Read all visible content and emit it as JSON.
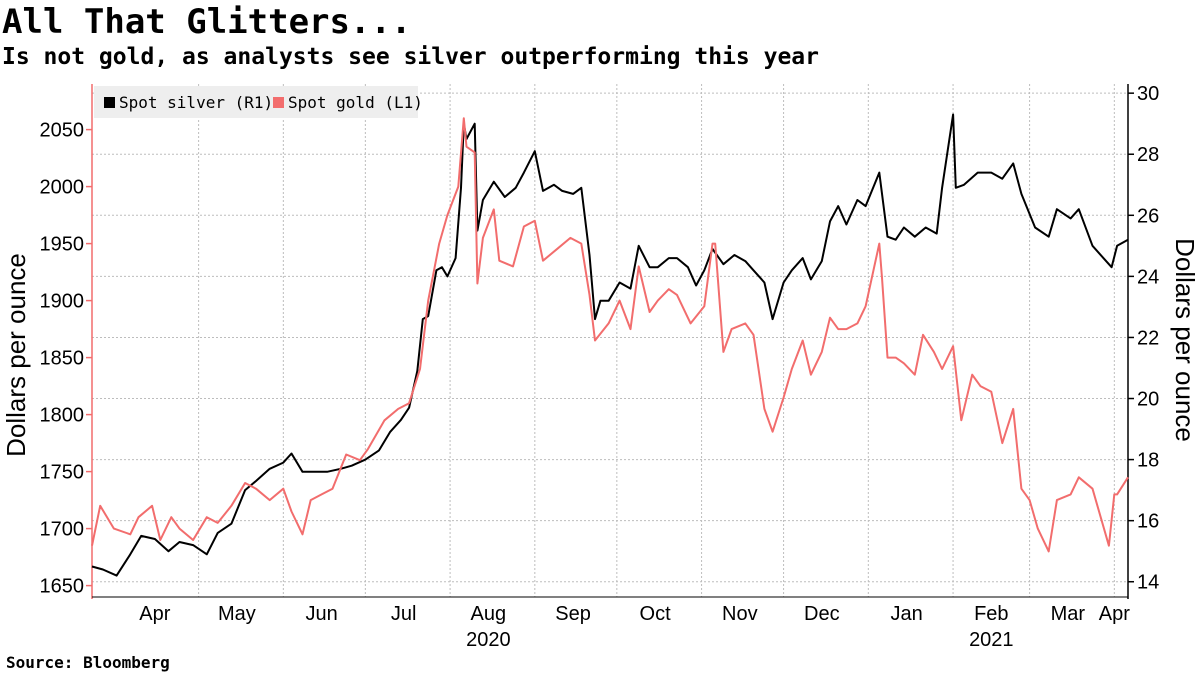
{
  "header": {
    "title": "All That Glitters...",
    "subtitle": "Is not gold, as analysts see silver outperforming this year"
  },
  "footer": {
    "source": "Source: Bloomberg"
  },
  "colors": {
    "silver": "#000000",
    "gold": "#f26d6d",
    "grid": "#bdbdbd",
    "legend_bg": "#eeeeee"
  },
  "chart_data": {
    "type": "line",
    "x_axis": {
      "type": "date",
      "range": [
        "2020-03-23",
        "2021-04-06"
      ],
      "ticks": [
        {
          "label": "Apr",
          "date": "2020-04-15"
        },
        {
          "label": "May",
          "date": "2020-05-15"
        },
        {
          "label": "Jun",
          "date": "2020-06-15"
        },
        {
          "label": "Jul",
          "date": "2020-07-15"
        },
        {
          "label": "Aug",
          "date": "2020-08-15"
        },
        {
          "label": "Sep",
          "date": "2020-09-15"
        },
        {
          "label": "Oct",
          "date": "2020-10-15"
        },
        {
          "label": "Nov",
          "date": "2020-11-15"
        },
        {
          "label": "Dec",
          "date": "2020-12-15"
        },
        {
          "label": "Jan",
          "date": "2021-01-15"
        },
        {
          "label": "Feb",
          "date": "2021-02-15"
        },
        {
          "label": "Mar",
          "date": "2021-03-15"
        },
        {
          "label": "Apr",
          "date": "2021-04-01"
        }
      ],
      "year_labels": [
        {
          "label": "2020",
          "date": "2020-08-15"
        },
        {
          "label": "2021",
          "date": "2021-02-15"
        }
      ]
    },
    "y_left": {
      "label": "Dollars per ounce",
      "range": [
        1640,
        2090
      ],
      "ticks": [
        1650,
        1700,
        1750,
        1800,
        1850,
        1900,
        1950,
        2000,
        2050
      ]
    },
    "y_right": {
      "label": "Dollars per ounce",
      "range": [
        13.5,
        30.3
      ],
      "ticks": [
        14,
        16,
        18,
        20,
        22,
        24,
        26,
        28,
        30
      ]
    },
    "legend": {
      "placement": "top-left",
      "entries": [
        {
          "label": "Spot silver (R1)",
          "color": "#000000"
        },
        {
          "label": "Spot gold (L1)",
          "color": "#f26d6d"
        }
      ]
    },
    "grid": true,
    "series": [
      {
        "name": "Spot silver (R1)",
        "axis": "right",
        "color": "#000000",
        "points": [
          [
            "2020-03-23",
            14.5
          ],
          [
            "2020-03-27",
            14.4
          ],
          [
            "2020-04-01",
            14.2
          ],
          [
            "2020-04-06",
            14.9
          ],
          [
            "2020-04-10",
            15.5
          ],
          [
            "2020-04-15",
            15.4
          ],
          [
            "2020-04-20",
            15.0
          ],
          [
            "2020-04-24",
            15.3
          ],
          [
            "2020-04-29",
            15.2
          ],
          [
            "2020-05-04",
            14.9
          ],
          [
            "2020-05-08",
            15.6
          ],
          [
            "2020-05-13",
            15.9
          ],
          [
            "2020-05-18",
            17.0
          ],
          [
            "2020-05-22",
            17.3
          ],
          [
            "2020-05-27",
            17.7
          ],
          [
            "2020-06-01",
            17.9
          ],
          [
            "2020-06-04",
            18.2
          ],
          [
            "2020-06-08",
            17.6
          ],
          [
            "2020-06-12",
            17.6
          ],
          [
            "2020-06-17",
            17.6
          ],
          [
            "2020-06-22",
            17.7
          ],
          [
            "2020-06-26",
            17.8
          ],
          [
            "2020-07-01",
            18.0
          ],
          [
            "2020-07-06",
            18.3
          ],
          [
            "2020-07-10",
            18.9
          ],
          [
            "2020-07-14",
            19.3
          ],
          [
            "2020-07-17",
            19.7
          ],
          [
            "2020-07-20",
            20.9
          ],
          [
            "2020-07-22",
            22.6
          ],
          [
            "2020-07-24",
            22.7
          ],
          [
            "2020-07-27",
            24.2
          ],
          [
            "2020-07-29",
            24.3
          ],
          [
            "2020-07-31",
            24.0
          ],
          [
            "2020-08-03",
            24.6
          ],
          [
            "2020-08-05",
            26.9
          ],
          [
            "2020-08-06",
            29.0
          ],
          [
            "2020-08-07",
            28.5
          ],
          [
            "2020-08-10",
            29.0
          ],
          [
            "2020-08-11",
            25.5
          ],
          [
            "2020-08-13",
            26.5
          ],
          [
            "2020-08-17",
            27.1
          ],
          [
            "2020-08-21",
            26.6
          ],
          [
            "2020-08-25",
            26.9
          ],
          [
            "2020-08-28",
            27.4
          ],
          [
            "2020-09-01",
            28.1
          ],
          [
            "2020-09-04",
            26.8
          ],
          [
            "2020-09-08",
            27.0
          ],
          [
            "2020-09-11",
            26.8
          ],
          [
            "2020-09-15",
            26.7
          ],
          [
            "2020-09-18",
            26.9
          ],
          [
            "2020-09-21",
            24.7
          ],
          [
            "2020-09-23",
            22.6
          ],
          [
            "2020-09-25",
            23.2
          ],
          [
            "2020-09-28",
            23.2
          ],
          [
            "2020-10-02",
            23.8
          ],
          [
            "2020-10-06",
            23.6
          ],
          [
            "2020-10-09",
            25.0
          ],
          [
            "2020-10-13",
            24.3
          ],
          [
            "2020-10-16",
            24.3
          ],
          [
            "2020-10-20",
            24.6
          ],
          [
            "2020-10-23",
            24.6
          ],
          [
            "2020-10-27",
            24.3
          ],
          [
            "2020-10-30",
            23.7
          ],
          [
            "2020-11-02",
            24.2
          ],
          [
            "2020-11-05",
            24.9
          ],
          [
            "2020-11-09",
            24.4
          ],
          [
            "2020-11-13",
            24.7
          ],
          [
            "2020-11-17",
            24.5
          ],
          [
            "2020-11-20",
            24.2
          ],
          [
            "2020-11-24",
            23.8
          ],
          [
            "2020-11-27",
            22.6
          ],
          [
            "2020-12-01",
            23.8
          ],
          [
            "2020-12-04",
            24.2
          ],
          [
            "2020-12-08",
            24.6
          ],
          [
            "2020-12-11",
            23.9
          ],
          [
            "2020-12-15",
            24.5
          ],
          [
            "2020-12-18",
            25.8
          ],
          [
            "2020-12-21",
            26.3
          ],
          [
            "2020-12-24",
            25.7
          ],
          [
            "2020-12-28",
            26.5
          ],
          [
            "2020-12-31",
            26.3
          ],
          [
            "2021-01-05",
            27.4
          ],
          [
            "2021-01-08",
            25.3
          ],
          [
            "2021-01-11",
            25.2
          ],
          [
            "2021-01-14",
            25.6
          ],
          [
            "2021-01-18",
            25.3
          ],
          [
            "2021-01-22",
            25.6
          ],
          [
            "2021-01-26",
            25.4
          ],
          [
            "2021-01-28",
            26.9
          ],
          [
            "2021-02-01",
            29.3
          ],
          [
            "2021-02-02",
            26.9
          ],
          [
            "2021-02-05",
            27.0
          ],
          [
            "2021-02-10",
            27.4
          ],
          [
            "2021-02-15",
            27.4
          ],
          [
            "2021-02-19",
            27.2
          ],
          [
            "2021-02-23",
            27.7
          ],
          [
            "2021-02-26",
            26.7
          ],
          [
            "2021-03-03",
            25.6
          ],
          [
            "2021-03-08",
            25.3
          ],
          [
            "2021-03-11",
            26.2
          ],
          [
            "2021-03-16",
            25.9
          ],
          [
            "2021-03-19",
            26.2
          ],
          [
            "2021-03-24",
            25.0
          ],
          [
            "2021-03-29",
            24.5
          ],
          [
            "2021-03-31",
            24.3
          ],
          [
            "2021-04-02",
            25.0
          ],
          [
            "2021-04-06",
            25.2
          ]
        ]
      },
      {
        "name": "Spot gold (L1)",
        "axis": "left",
        "color": "#f26d6d",
        "points": [
          [
            "2020-03-23",
            1685
          ],
          [
            "2020-03-26",
            1720
          ],
          [
            "2020-03-31",
            1700
          ],
          [
            "2020-04-06",
            1695
          ],
          [
            "2020-04-09",
            1710
          ],
          [
            "2020-04-14",
            1720
          ],
          [
            "2020-04-17",
            1690
          ],
          [
            "2020-04-21",
            1710
          ],
          [
            "2020-04-24",
            1700
          ],
          [
            "2020-04-29",
            1690
          ],
          [
            "2020-05-04",
            1710
          ],
          [
            "2020-05-08",
            1705
          ],
          [
            "2020-05-13",
            1720
          ],
          [
            "2020-05-18",
            1740
          ],
          [
            "2020-05-22",
            1735
          ],
          [
            "2020-05-27",
            1725
          ],
          [
            "2020-06-01",
            1735
          ],
          [
            "2020-06-04",
            1715
          ],
          [
            "2020-06-08",
            1695
          ],
          [
            "2020-06-11",
            1725
          ],
          [
            "2020-06-15",
            1730
          ],
          [
            "2020-06-19",
            1735
          ],
          [
            "2020-06-24",
            1765
          ],
          [
            "2020-06-29",
            1760
          ],
          [
            "2020-07-02",
            1770
          ],
          [
            "2020-07-08",
            1795
          ],
          [
            "2020-07-13",
            1805
          ],
          [
            "2020-07-17",
            1810
          ],
          [
            "2020-07-21",
            1840
          ],
          [
            "2020-07-24",
            1900
          ],
          [
            "2020-07-28",
            1950
          ],
          [
            "2020-07-31",
            1975
          ],
          [
            "2020-08-04",
            2000
          ],
          [
            "2020-08-06",
            2060
          ],
          [
            "2020-08-07",
            2035
          ],
          [
            "2020-08-10",
            2030
          ],
          [
            "2020-08-11",
            1915
          ],
          [
            "2020-08-13",
            1955
          ],
          [
            "2020-08-17",
            1980
          ],
          [
            "2020-08-19",
            1935
          ],
          [
            "2020-08-24",
            1930
          ],
          [
            "2020-08-28",
            1965
          ],
          [
            "2020-09-01",
            1970
          ],
          [
            "2020-09-04",
            1935
          ],
          [
            "2020-09-09",
            1945
          ],
          [
            "2020-09-14",
            1955
          ],
          [
            "2020-09-18",
            1950
          ],
          [
            "2020-09-21",
            1905
          ],
          [
            "2020-09-23",
            1865
          ],
          [
            "2020-09-28",
            1880
          ],
          [
            "2020-10-02",
            1900
          ],
          [
            "2020-10-06",
            1875
          ],
          [
            "2020-10-09",
            1930
          ],
          [
            "2020-10-13",
            1890
          ],
          [
            "2020-10-16",
            1900
          ],
          [
            "2020-10-20",
            1910
          ],
          [
            "2020-10-23",
            1905
          ],
          [
            "2020-10-28",
            1880
          ],
          [
            "2020-11-02",
            1895
          ],
          [
            "2020-11-05",
            1950
          ],
          [
            "2020-11-06",
            1950
          ],
          [
            "2020-11-09",
            1855
          ],
          [
            "2020-11-12",
            1875
          ],
          [
            "2020-11-17",
            1880
          ],
          [
            "2020-11-20",
            1870
          ],
          [
            "2020-11-24",
            1805
          ],
          [
            "2020-11-27",
            1785
          ],
          [
            "2020-12-01",
            1815
          ],
          [
            "2020-12-04",
            1840
          ],
          [
            "2020-12-08",
            1865
          ],
          [
            "2020-12-11",
            1835
          ],
          [
            "2020-12-15",
            1855
          ],
          [
            "2020-12-18",
            1885
          ],
          [
            "2020-12-21",
            1875
          ],
          [
            "2020-12-24",
            1875
          ],
          [
            "2020-12-28",
            1880
          ],
          [
            "2020-12-31",
            1895
          ],
          [
            "2021-01-05",
            1950
          ],
          [
            "2021-01-06",
            1920
          ],
          [
            "2021-01-08",
            1850
          ],
          [
            "2021-01-11",
            1850
          ],
          [
            "2021-01-14",
            1845
          ],
          [
            "2021-01-18",
            1835
          ],
          [
            "2021-01-21",
            1870
          ],
          [
            "2021-01-25",
            1855
          ],
          [
            "2021-01-28",
            1840
          ],
          [
            "2021-02-01",
            1860
          ],
          [
            "2021-02-04",
            1795
          ],
          [
            "2021-02-08",
            1835
          ],
          [
            "2021-02-11",
            1825
          ],
          [
            "2021-02-15",
            1820
          ],
          [
            "2021-02-19",
            1775
          ],
          [
            "2021-02-23",
            1805
          ],
          [
            "2021-02-26",
            1735
          ],
          [
            "2021-03-01",
            1725
          ],
          [
            "2021-03-04",
            1700
          ],
          [
            "2021-03-08",
            1680
          ],
          [
            "2021-03-11",
            1725
          ],
          [
            "2021-03-16",
            1730
          ],
          [
            "2021-03-19",
            1745
          ],
          [
            "2021-03-24",
            1735
          ],
          [
            "2021-03-30",
            1685
          ],
          [
            "2021-04-01",
            1730
          ],
          [
            "2021-04-02",
            1730
          ],
          [
            "2021-04-06",
            1745
          ]
        ]
      }
    ]
  }
}
